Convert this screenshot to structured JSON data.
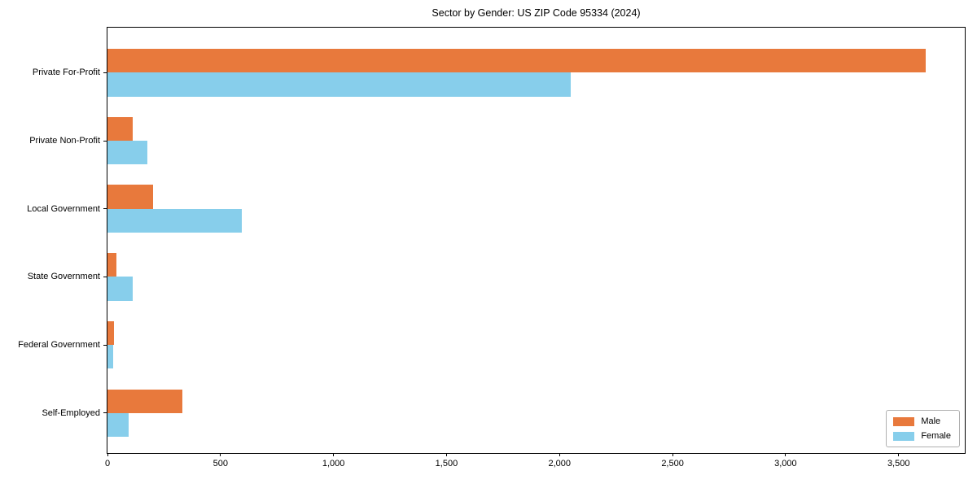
{
  "chart_data": {
    "type": "bar",
    "orientation": "horizontal",
    "title": "Sector by Gender: US ZIP Code 95334 (2024)",
    "xlabel": "",
    "ylabel": "",
    "categories": [
      "Private For-Profit",
      "Private Non-Profit",
      "Local Government",
      "State Government",
      "Federal Government",
      "Self-Employed"
    ],
    "series": [
      {
        "name": "Male",
        "color": "#E8793C",
        "values": [
          3620,
          110,
          200,
          40,
          28,
          330
        ]
      },
      {
        "name": "Female",
        "color": "#87CEEB",
        "values": [
          2050,
          175,
          595,
          110,
          25,
          95
        ]
      }
    ],
    "xlim": [
      0,
      3800
    ],
    "xticks": [
      0,
      500,
      1000,
      1500,
      2000,
      2500,
      3000,
      3500
    ],
    "xtick_labels": [
      "0",
      "500",
      "1,000",
      "1,500",
      "2,000",
      "2,500",
      "3,000",
      "3,500"
    ],
    "grid": false,
    "legend": {
      "position": "lower right",
      "entries": [
        "Male",
        "Female"
      ]
    },
    "colors": {
      "axis": "#000000",
      "legend_border": "#b0b0b0",
      "background": "#ffffff"
    }
  }
}
